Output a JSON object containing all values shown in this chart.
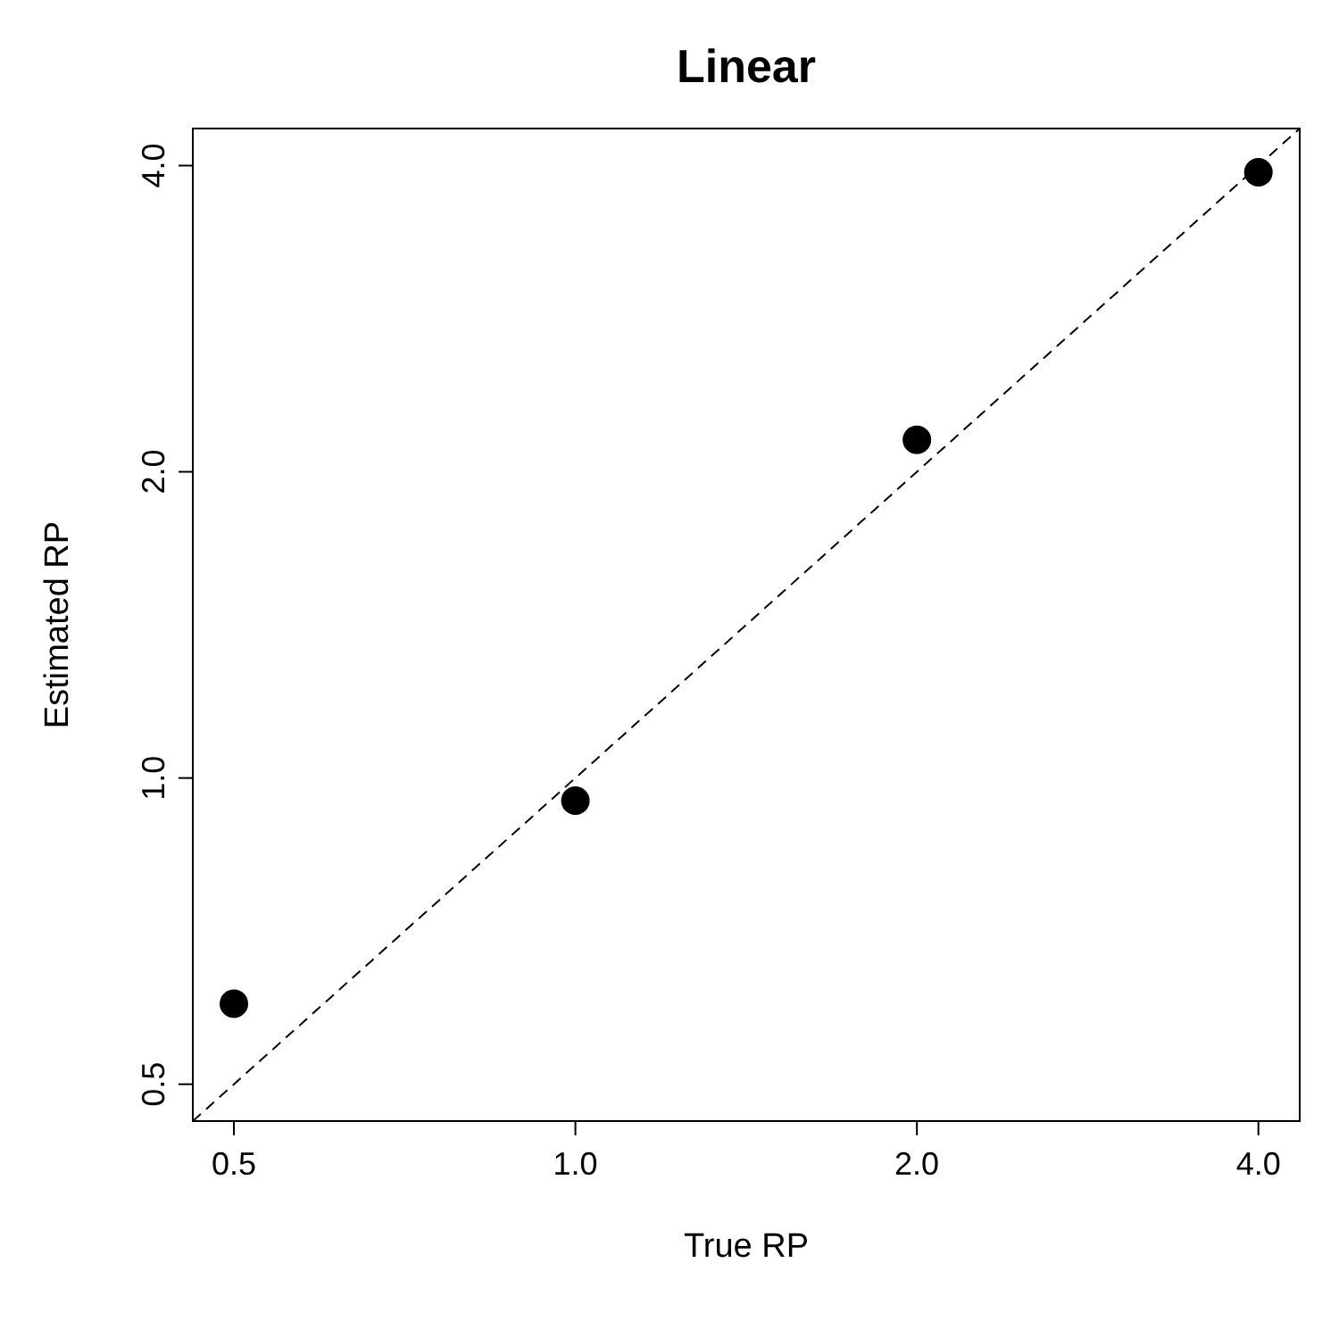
{
  "chart_data": {
    "type": "scatter",
    "title": "Linear",
    "xlabel": "True RP",
    "ylabel": "Estimated RP",
    "log": "xy",
    "marker": "circle",
    "grid": false,
    "x": [
      0.5,
      1.0,
      2.0,
      4.0
    ],
    "xlim": [
      0.46,
      4.35
    ],
    "ylim": [
      0.46,
      4.35
    ],
    "xticks": [
      {
        "value": 0.5,
        "label": "0.5"
      },
      {
        "value": 1,
        "label": "1.0"
      },
      {
        "value": 2,
        "label": "2.0"
      },
      {
        "value": 4,
        "label": "4.0"
      }
    ],
    "yticks": [
      {
        "value": 0.5,
        "label": "0.5"
      },
      {
        "value": 1,
        "label": "1.0"
      },
      {
        "value": 2,
        "label": "2.0"
      },
      {
        "value": 4,
        "label": "4.0"
      }
    ],
    "series": [
      {
        "color": "#000000",
        "values": [
          0.6,
          0.95,
          2.15,
          3.94
        ]
      },
      {
        "type": "line",
        "color": "#000000",
        "line_style": "dashed",
        "marker": "none",
        "x": [
          0.46,
          4.35
        ],
        "values": [
          0.46,
          4.35
        ]
      }
    ]
  }
}
